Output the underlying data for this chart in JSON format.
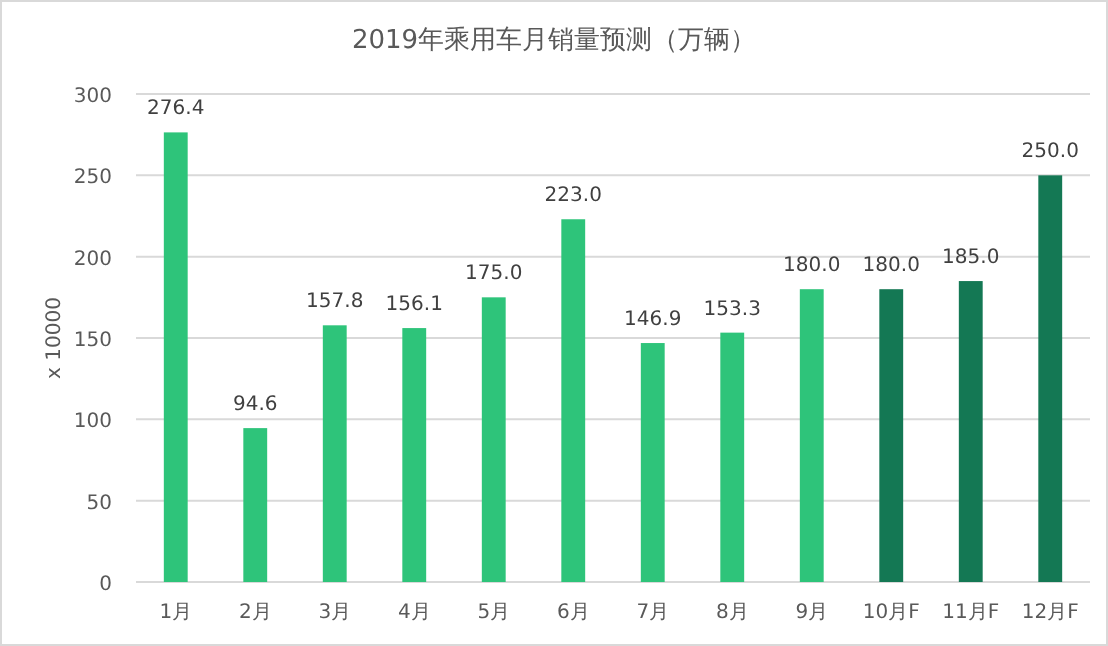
{
  "chart_data": {
    "type": "bar",
    "title": "2019年乘用车月销量预测（万辆）",
    "ylabel": "x 10000",
    "categories": [
      "1月",
      "2月",
      "3月",
      "4月",
      "5月",
      "6月",
      "7月",
      "8月",
      "9月",
      "10月F",
      "11月F",
      "12月F"
    ],
    "values": [
      276.4,
      94.6,
      157.8,
      156.1,
      175.0,
      223.0,
      146.9,
      153.3,
      180.0,
      180.0,
      185.0,
      250.0
    ],
    "value_labels": [
      "276.4",
      "94.6",
      "157.8",
      "156.1",
      "175.0",
      "223.0",
      "146.9",
      "153.3",
      "180.0",
      "180.0",
      "185.0",
      "250.0"
    ],
    "colors": [
      "#2ec47a",
      "#2ec47a",
      "#2ec47a",
      "#2ec47a",
      "#2ec47a",
      "#2ec47a",
      "#2ec47a",
      "#2ec47a",
      "#2ec47a",
      "#147854",
      "#147854",
      "#147854"
    ],
    "ylim": [
      0,
      300
    ],
    "yticks": [
      0,
      50,
      100,
      150,
      200,
      250,
      300
    ],
    "grid": "y"
  }
}
